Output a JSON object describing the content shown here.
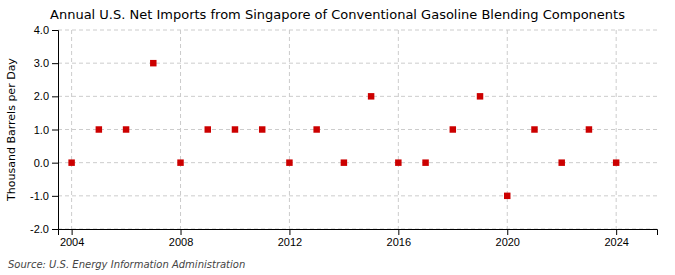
{
  "chart_data": {
    "type": "scatter",
    "title": "Annual U.S. Net Imports from Singapore of Conventional Gasoline Blending Components",
    "ylabel": "Thousand Barrels per Day",
    "annotation": "Source: U.S. Energy Information Administration",
    "x": [
      2004,
      2005,
      2006,
      2007,
      2008,
      2009,
      2010,
      2011,
      2012,
      2013,
      2014,
      2015,
      2016,
      2017,
      2018,
      2019,
      2020,
      2021,
      2022,
      2023,
      2024
    ],
    "values": [
      0,
      1,
      1,
      3,
      0,
      1,
      1,
      1,
      0,
      1,
      0,
      2,
      0,
      0,
      1,
      2,
      -1,
      1,
      0,
      1,
      0
    ],
    "color": "#cc0000",
    "marker": "square",
    "xlim": [
      2003.5,
      2025.5
    ],
    "xticks": [
      2004,
      2008,
      2012,
      2016,
      2020,
      2024
    ],
    "ylim": [
      -2.0,
      4.0
    ],
    "yticks": [
      {
        "value": -2.0,
        "label": "-2.0"
      },
      {
        "value": -1.0,
        "label": "-1.0"
      },
      {
        "value": 0.0,
        "label": "0.0"
      },
      {
        "value": 1.0,
        "label": "1.0"
      },
      {
        "value": 2.0,
        "label": "2.0"
      },
      {
        "value": 3.0,
        "label": "3.0"
      },
      {
        "value": 4.0,
        "label": "4.0"
      }
    ],
    "grid": true
  }
}
